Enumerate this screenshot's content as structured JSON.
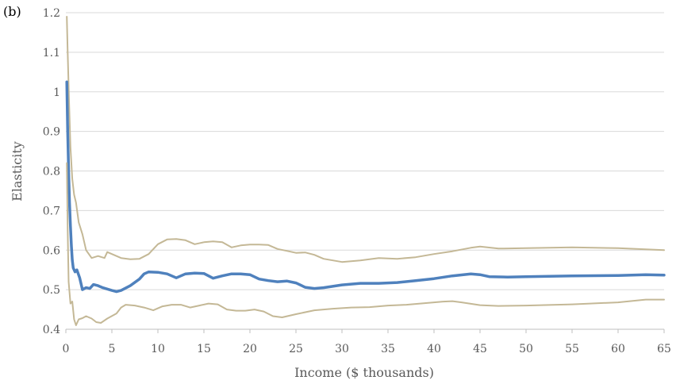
{
  "panel_label": "(b)",
  "chart_data": {
    "type": "line",
    "title": "",
    "xlabel": "Income ($ thousands)",
    "ylabel": "Elasticity",
    "xlim": [
      0,
      65
    ],
    "ylim": [
      0.4,
      1.2
    ],
    "x_ticks": [
      0,
      5,
      10,
      15,
      20,
      25,
      30,
      35,
      40,
      45,
      50,
      55,
      60,
      65
    ],
    "y_ticks": [
      0.4,
      0.5,
      0.6,
      0.7,
      0.8,
      0.9,
      1.0,
      1.1,
      1.2
    ],
    "x_tick_labels": [
      "0",
      "5",
      "10",
      "15",
      "20",
      "25",
      "30",
      "35",
      "40",
      "45",
      "50",
      "55",
      "60",
      "65"
    ],
    "y_tick_labels": [
      "0.4",
      "0.5",
      "0.6",
      "0.7",
      "0.8",
      "0.9",
      "1",
      "1.1",
      "1.2"
    ],
    "grid": "horizontal",
    "legend": "none",
    "series": [
      {
        "role": "upper-bound",
        "color": "#c4b896",
        "width": 2,
        "points": [
          [
            0.1,
            1.19
          ],
          [
            0.2,
            1.1
          ],
          [
            0.35,
            0.97
          ],
          [
            0.5,
            0.86
          ],
          [
            0.7,
            0.78
          ],
          [
            0.9,
            0.74
          ],
          [
            1.1,
            0.72
          ],
          [
            1.4,
            0.67
          ],
          [
            1.8,
            0.64
          ],
          [
            2.2,
            0.6
          ],
          [
            2.8,
            0.58
          ],
          [
            3.5,
            0.585
          ],
          [
            4.2,
            0.58
          ],
          [
            4.5,
            0.595
          ],
          [
            5,
            0.59
          ],
          [
            6,
            0.58
          ],
          [
            7,
            0.577
          ],
          [
            8,
            0.578
          ],
          [
            9,
            0.59
          ],
          [
            10,
            0.615
          ],
          [
            11,
            0.627
          ],
          [
            12,
            0.628
          ],
          [
            13,
            0.625
          ],
          [
            14,
            0.615
          ],
          [
            15,
            0.62
          ],
          [
            16,
            0.622
          ],
          [
            17,
            0.62
          ],
          [
            18,
            0.607
          ],
          [
            19,
            0.612
          ],
          [
            20,
            0.614
          ],
          [
            21,
            0.614
          ],
          [
            22,
            0.613
          ],
          [
            23,
            0.603
          ],
          [
            24,
            0.598
          ],
          [
            25,
            0.593
          ],
          [
            26,
            0.594
          ],
          [
            27,
            0.588
          ],
          [
            28,
            0.578
          ],
          [
            30,
            0.57
          ],
          [
            32,
            0.574
          ],
          [
            34,
            0.58
          ],
          [
            36,
            0.578
          ],
          [
            38,
            0.582
          ],
          [
            40,
            0.59
          ],
          [
            42,
            0.597
          ],
          [
            44,
            0.606
          ],
          [
            45,
            0.609
          ],
          [
            47,
            0.604
          ],
          [
            50,
            0.605
          ],
          [
            55,
            0.607
          ],
          [
            60,
            0.605
          ],
          [
            65,
            0.6
          ]
        ]
      },
      {
        "role": "estimate",
        "color": "#4f81bd",
        "width": 3.5,
        "points": [
          [
            0.1,
            1.025
          ],
          [
            0.2,
            0.9
          ],
          [
            0.3,
            0.8
          ],
          [
            0.4,
            0.72
          ],
          [
            0.5,
            0.66
          ],
          [
            0.6,
            0.61
          ],
          [
            0.7,
            0.575
          ],
          [
            0.8,
            0.555
          ],
          [
            1.0,
            0.545
          ],
          [
            1.2,
            0.55
          ],
          [
            1.5,
            0.53
          ],
          [
            1.8,
            0.5
          ],
          [
            2.2,
            0.505
          ],
          [
            2.6,
            0.503
          ],
          [
            3.0,
            0.513
          ],
          [
            3.5,
            0.51
          ],
          [
            4.0,
            0.505
          ],
          [
            5,
            0.498
          ],
          [
            5.5,
            0.495
          ],
          [
            6,
            0.498
          ],
          [
            7,
            0.51
          ],
          [
            8,
            0.527
          ],
          [
            8.5,
            0.54
          ],
          [
            9,
            0.545
          ],
          [
            10,
            0.544
          ],
          [
            11,
            0.54
          ],
          [
            12,
            0.53
          ],
          [
            13,
            0.54
          ],
          [
            14,
            0.542
          ],
          [
            15,
            0.541
          ],
          [
            16,
            0.529
          ],
          [
            17,
            0.535
          ],
          [
            18,
            0.54
          ],
          [
            19,
            0.54
          ],
          [
            20,
            0.538
          ],
          [
            21,
            0.527
          ],
          [
            22,
            0.523
          ],
          [
            23,
            0.52
          ],
          [
            24,
            0.522
          ],
          [
            25,
            0.517
          ],
          [
            26,
            0.506
          ],
          [
            27,
            0.503
          ],
          [
            28,
            0.505
          ],
          [
            30,
            0.512
          ],
          [
            32,
            0.516
          ],
          [
            34,
            0.516
          ],
          [
            36,
            0.518
          ],
          [
            38,
            0.523
          ],
          [
            40,
            0.528
          ],
          [
            42,
            0.535
          ],
          [
            44,
            0.54
          ],
          [
            45,
            0.538
          ],
          [
            46,
            0.533
          ],
          [
            48,
            0.532
          ],
          [
            50,
            0.533
          ],
          [
            55,
            0.535
          ],
          [
            60,
            0.536
          ],
          [
            63,
            0.538
          ],
          [
            65,
            0.537
          ]
        ]
      },
      {
        "role": "lower-bound",
        "color": "#c4b896",
        "width": 2,
        "points": [
          [
            0.1,
            0.82
          ],
          [
            0.2,
            0.65
          ],
          [
            0.3,
            0.52
          ],
          [
            0.5,
            0.465
          ],
          [
            0.7,
            0.47
          ],
          [
            0.9,
            0.425
          ],
          [
            1.1,
            0.41
          ],
          [
            1.4,
            0.425
          ],
          [
            1.8,
            0.428
          ],
          [
            2.2,
            0.433
          ],
          [
            2.8,
            0.427
          ],
          [
            3.3,
            0.418
          ],
          [
            3.8,
            0.416
          ],
          [
            4.5,
            0.427
          ],
          [
            5.5,
            0.44
          ],
          [
            6,
            0.455
          ],
          [
            6.5,
            0.462
          ],
          [
            7.5,
            0.46
          ],
          [
            8.5,
            0.455
          ],
          [
            9.5,
            0.448
          ],
          [
            10.5,
            0.458
          ],
          [
            11.5,
            0.462
          ],
          [
            12.5,
            0.462
          ],
          [
            13.5,
            0.455
          ],
          [
            14.5,
            0.46
          ],
          [
            15.5,
            0.465
          ],
          [
            16.5,
            0.463
          ],
          [
            17.5,
            0.45
          ],
          [
            18.5,
            0.447
          ],
          [
            19.5,
            0.447
          ],
          [
            20.5,
            0.45
          ],
          [
            21.5,
            0.445
          ],
          [
            22.5,
            0.433
          ],
          [
            23.5,
            0.43
          ],
          [
            25,
            0.438
          ],
          [
            27,
            0.448
          ],
          [
            29,
            0.452
          ],
          [
            31,
            0.455
          ],
          [
            33,
            0.456
          ],
          [
            35,
            0.46
          ],
          [
            37,
            0.462
          ],
          [
            39,
            0.466
          ],
          [
            41,
            0.47
          ],
          [
            42,
            0.471
          ],
          [
            43,
            0.468
          ],
          [
            45,
            0.461
          ],
          [
            47,
            0.459
          ],
          [
            50,
            0.46
          ],
          [
            55,
            0.463
          ],
          [
            60,
            0.468
          ],
          [
            63,
            0.475
          ],
          [
            65,
            0.475
          ]
        ]
      }
    ]
  }
}
